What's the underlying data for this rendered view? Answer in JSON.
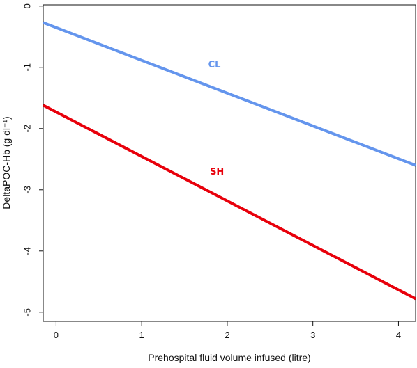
{
  "chart_data": {
    "type": "line",
    "title": "",
    "xlabel": "Prehospital fluid volume infused (litre)",
    "ylabel": "DeltaPOC-Hb (g dl⁻¹)",
    "xlim": [
      -0.15,
      4.2
    ],
    "ylim": [
      -5.15,
      0.02
    ],
    "xticks": [
      0,
      1,
      2,
      3,
      4
    ],
    "yticks": [
      0,
      -1,
      -2,
      -3,
      -4,
      -5
    ],
    "grid": false,
    "legend": "none",
    "series": [
      {
        "name": "CL",
        "color": "#6495ED",
        "x": [
          -0.15,
          4.2
        ],
        "y": [
          -0.27,
          -2.6
        ],
        "label_at": [
          1.85,
          -1.0
        ]
      },
      {
        "name": "SH",
        "color": "#E8000B",
        "x": [
          -0.15,
          4.2
        ],
        "y": [
          -1.62,
          -4.78
        ],
        "label_at": [
          1.88,
          -2.75
        ]
      }
    ]
  }
}
